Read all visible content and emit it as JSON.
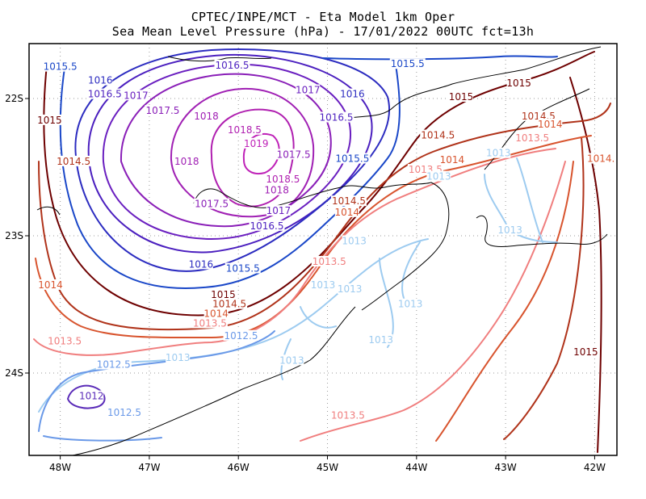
{
  "header": {
    "line1": "CPTEC/INPE/MCT -  Eta Model 1km Oper",
    "line2": "Sea Mean Level Pressure (hPa) - 17/01/2022 00UTC fct=13h"
  },
  "chart_data": {
    "type": "contour",
    "title": "Sea Mean Level Pressure (hPa) - 17/01/2022 00UTC fct=13h",
    "subtitle": "CPTEC/INPE/MCT - Eta Model 1km Oper",
    "variable": "Sea Mean Level Pressure",
    "units": "hPa",
    "xlim": [
      -48.35,
      -41.75
    ],
    "ylim": [
      -24.6,
      -21.6
    ],
    "x_ticks": [
      {
        "value": -48,
        "label": "48W"
      },
      {
        "value": -47,
        "label": "47W"
      },
      {
        "value": -46,
        "label": "46W"
      },
      {
        "value": -45,
        "label": "45W"
      },
      {
        "value": -44,
        "label": "44W"
      },
      {
        "value": -43,
        "label": "43W"
      },
      {
        "value": -42,
        "label": "42W"
      }
    ],
    "y_ticks": [
      {
        "value": -22,
        "label": "22S"
      },
      {
        "value": -23,
        "label": "23S"
      },
      {
        "value": -24,
        "label": "24S"
      }
    ],
    "grid": true,
    "high_center": {
      "lon": -45.8,
      "lat": -22.3,
      "value": 1019
    },
    "contour_levels": [
      1012,
      1012.5,
      1013,
      1013.5,
      1014,
      1014.5,
      1015,
      1015.5,
      1016,
      1016.5,
      1017,
      1017.5,
      1018,
      1018.5,
      1019
    ],
    "level_colors": {
      "1012": "#5a2bb8",
      "1012.5": "#6a99e8",
      "1013": "#9dcbf0",
      "1013.5": "#f07e7e",
      "1014": "#d8542e",
      "1014.5": "#b0331a",
      "1015": "#6e0000",
      "1015.5": "#1a47c8",
      "1016": "#2c2cc0",
      "1016.5": "#4b1fbf",
      "1017": "#6a1fc0",
      "1017.5": "#8a1fb8",
      "1018": "#a020b4",
      "1018.5": "#b020b0",
      "1019": "#bf22b8"
    },
    "contour_labels": [
      {
        "text": "1015.5",
        "lon": -48.0,
        "lat": -21.78
      },
      {
        "text": "1016.5",
        "lon": -46.07,
        "lat": -21.77
      },
      {
        "text": "1015.5",
        "lon": -44.1,
        "lat": -21.76
      },
      {
        "text": "1015",
        "lon": -42.85,
        "lat": -21.9
      },
      {
        "text": "1015",
        "lon": -43.5,
        "lat": -22.0
      },
      {
        "text": "1016",
        "lon": -47.55,
        "lat": -21.88
      },
      {
        "text": "1016.5",
        "lon": -47.5,
        "lat": -21.98
      },
      {
        "text": "1017",
        "lon": -47.15,
        "lat": -21.99
      },
      {
        "text": "1017",
        "lon": -45.22,
        "lat": -21.95
      },
      {
        "text": "1016",
        "lon": -44.72,
        "lat": -21.98
      },
      {
        "text": "1017.5",
        "lon": -46.85,
        "lat": -22.1
      },
      {
        "text": "1018",
        "lon": -46.36,
        "lat": -22.14
      },
      {
        "text": "1016.5",
        "lon": -44.9,
        "lat": -22.15
      },
      {
        "text": "1014.5",
        "lon": -42.63,
        "lat": -22.14
      },
      {
        "text": "1014",
        "lon": -42.5,
        "lat": -22.2
      },
      {
        "text": "1015",
        "lon": -48.12,
        "lat": -22.17
      },
      {
        "text": "1018.5",
        "lon": -45.93,
        "lat": -22.24
      },
      {
        "text": "1014.5",
        "lon": -43.76,
        "lat": -22.28
      },
      {
        "text": "1013.5",
        "lon": -42.7,
        "lat": -22.3
      },
      {
        "text": "1019",
        "lon": -45.8,
        "lat": -22.34
      },
      {
        "text": "1017.5",
        "lon": -45.38,
        "lat": -22.42
      },
      {
        "text": "1015.5",
        "lon": -44.72,
        "lat": -22.45
      },
      {
        "text": "1013",
        "lon": -43.08,
        "lat": -22.41
      },
      {
        "text": "1014",
        "lon": -43.6,
        "lat": -22.46
      },
      {
        "text": "1014.",
        "lon": -41.93,
        "lat": -22.45
      },
      {
        "text": "1014.5",
        "lon": -47.85,
        "lat": -22.47
      },
      {
        "text": "1018",
        "lon": -46.58,
        "lat": -22.47
      },
      {
        "text": "1013.5",
        "lon": -43.9,
        "lat": -22.53
      },
      {
        "text": "1013",
        "lon": -43.75,
        "lat": -22.58
      },
      {
        "text": "1018.5",
        "lon": -45.5,
        "lat": -22.6
      },
      {
        "text": "1018",
        "lon": -45.57,
        "lat": -22.68
      },
      {
        "text": "1017.5",
        "lon": -46.3,
        "lat": -22.78
      },
      {
        "text": "1014.5",
        "lon": -44.76,
        "lat": -22.76
      },
      {
        "text": "1017",
        "lon": -45.55,
        "lat": -22.83
      },
      {
        "text": "1014",
        "lon": -44.78,
        "lat": -22.84
      },
      {
        "text": "1016.5",
        "lon": -45.68,
        "lat": -22.94
      },
      {
        "text": "1013",
        "lon": -42.95,
        "lat": -22.97
      },
      {
        "text": "1013",
        "lon": -44.7,
        "lat": -23.05
      },
      {
        "text": "1016",
        "lon": -46.42,
        "lat": -23.22
      },
      {
        "text": "1015.5",
        "lon": -45.95,
        "lat": -23.25
      },
      {
        "text": "1013.5",
        "lon": -44.98,
        "lat": -23.2
      },
      {
        "text": "1013",
        "lon": -45.05,
        "lat": -23.37
      },
      {
        "text": "1013",
        "lon": -44.75,
        "lat": -23.4
      },
      {
        "text": "1014",
        "lon": -48.11,
        "lat": -23.37
      },
      {
        "text": "1015",
        "lon": -46.17,
        "lat": -23.44
      },
      {
        "text": "1014.5",
        "lon": -46.1,
        "lat": -23.51
      },
      {
        "text": "1013",
        "lon": -44.07,
        "lat": -23.51
      },
      {
        "text": "1014",
        "lon": -46.25,
        "lat": -23.58
      },
      {
        "text": "1013.5",
        "lon": -46.32,
        "lat": -23.65
      },
      {
        "text": "1012.5",
        "lon": -45.97,
        "lat": -23.74
      },
      {
        "text": "1013.5",
        "lon": -47.95,
        "lat": -23.78
      },
      {
        "text": "1013",
        "lon": -44.4,
        "lat": -23.77
      },
      {
        "text": "1013",
        "lon": -46.68,
        "lat": -23.9
      },
      {
        "text": "1013",
        "lon": -45.4,
        "lat": -23.92
      },
      {
        "text": "1015",
        "lon": -42.1,
        "lat": -23.86
      },
      {
        "text": "1012.5",
        "lon": -47.4,
        "lat": -23.95
      },
      {
        "text": "1012",
        "lon": -47.65,
        "lat": -24.18
      },
      {
        "text": "1012.5",
        "lon": -47.28,
        "lat": -24.3
      },
      {
        "text": "1013.5",
        "lon": -44.77,
        "lat": -24.32
      }
    ]
  }
}
